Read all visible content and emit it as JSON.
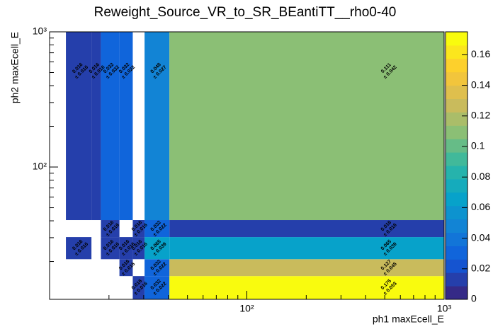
{
  "chart_data": {
    "type": "heatmap",
    "title": "Reweight_Source_VR_to_SR_BEantiTT__rho0-40",
    "xlabel": "ph1 maxEcell_E",
    "ylabel": "ph2 maxEcell_E",
    "log_x": true,
    "log_y": true,
    "xlim": [
      10,
      1000
    ],
    "ylim": [
      10.5,
      1000
    ],
    "xticks": [
      {
        "value": 100,
        "label": "10²"
      },
      {
        "value": 1000,
        "label": "10³"
      }
    ],
    "yticks": [
      {
        "value": 100,
        "label": "10²"
      },
      {
        "value": 1000,
        "label": "10³"
      }
    ],
    "x_edges": [
      12.1,
      16.3,
      18.2,
      22.6,
      26.4,
      30.3,
      40.5,
      1000
    ],
    "y_edges": [
      10.5,
      15.6,
      20.8,
      30.3,
      40.5,
      1000
    ],
    "values": [
      [
        null,
        null,
        null,
        null,
        0.016,
        0.032,
        0.175
      ],
      [
        null,
        null,
        null,
        0.016,
        null,
        0.032,
        0.127
      ],
      [
        0.016,
        null,
        0.016,
        0.016,
        0.016,
        0.065,
        0.065
      ],
      [
        null,
        null,
        0.016,
        null,
        0.016,
        0.032,
        0.016
      ],
      [
        0.016,
        0.016,
        0.032,
        0.032,
        null,
        0.048,
        0.111
      ]
    ],
    "error_labels": [
      [
        null,
        null,
        null,
        null,
        "± 0.016",
        "± 0.022",
        "± 0.053"
      ],
      [
        null,
        null,
        null,
        "± 0.016",
        null,
        "± 0.022",
        "± 0.045"
      ],
      [
        "± 0.016",
        null,
        "± 0.016",
        "± 0.016",
        "± 0.016",
        "± 0.039",
        "± 0.039"
      ],
      [
        null,
        null,
        "± 0.016",
        null,
        "± 0.016",
        "± 0.022",
        "± 0.016"
      ],
      [
        "± 0.016",
        "± 0.016",
        "± 0.032",
        "± 0.022",
        null,
        "± 0.027",
        "± 0.042"
      ]
    ],
    "zlim": [
      0,
      0.175
    ],
    "zticks": [
      0,
      0.02,
      0.04,
      0.06,
      0.08,
      0.1,
      0.12,
      0.14,
      0.16
    ],
    "contours": 20
  }
}
